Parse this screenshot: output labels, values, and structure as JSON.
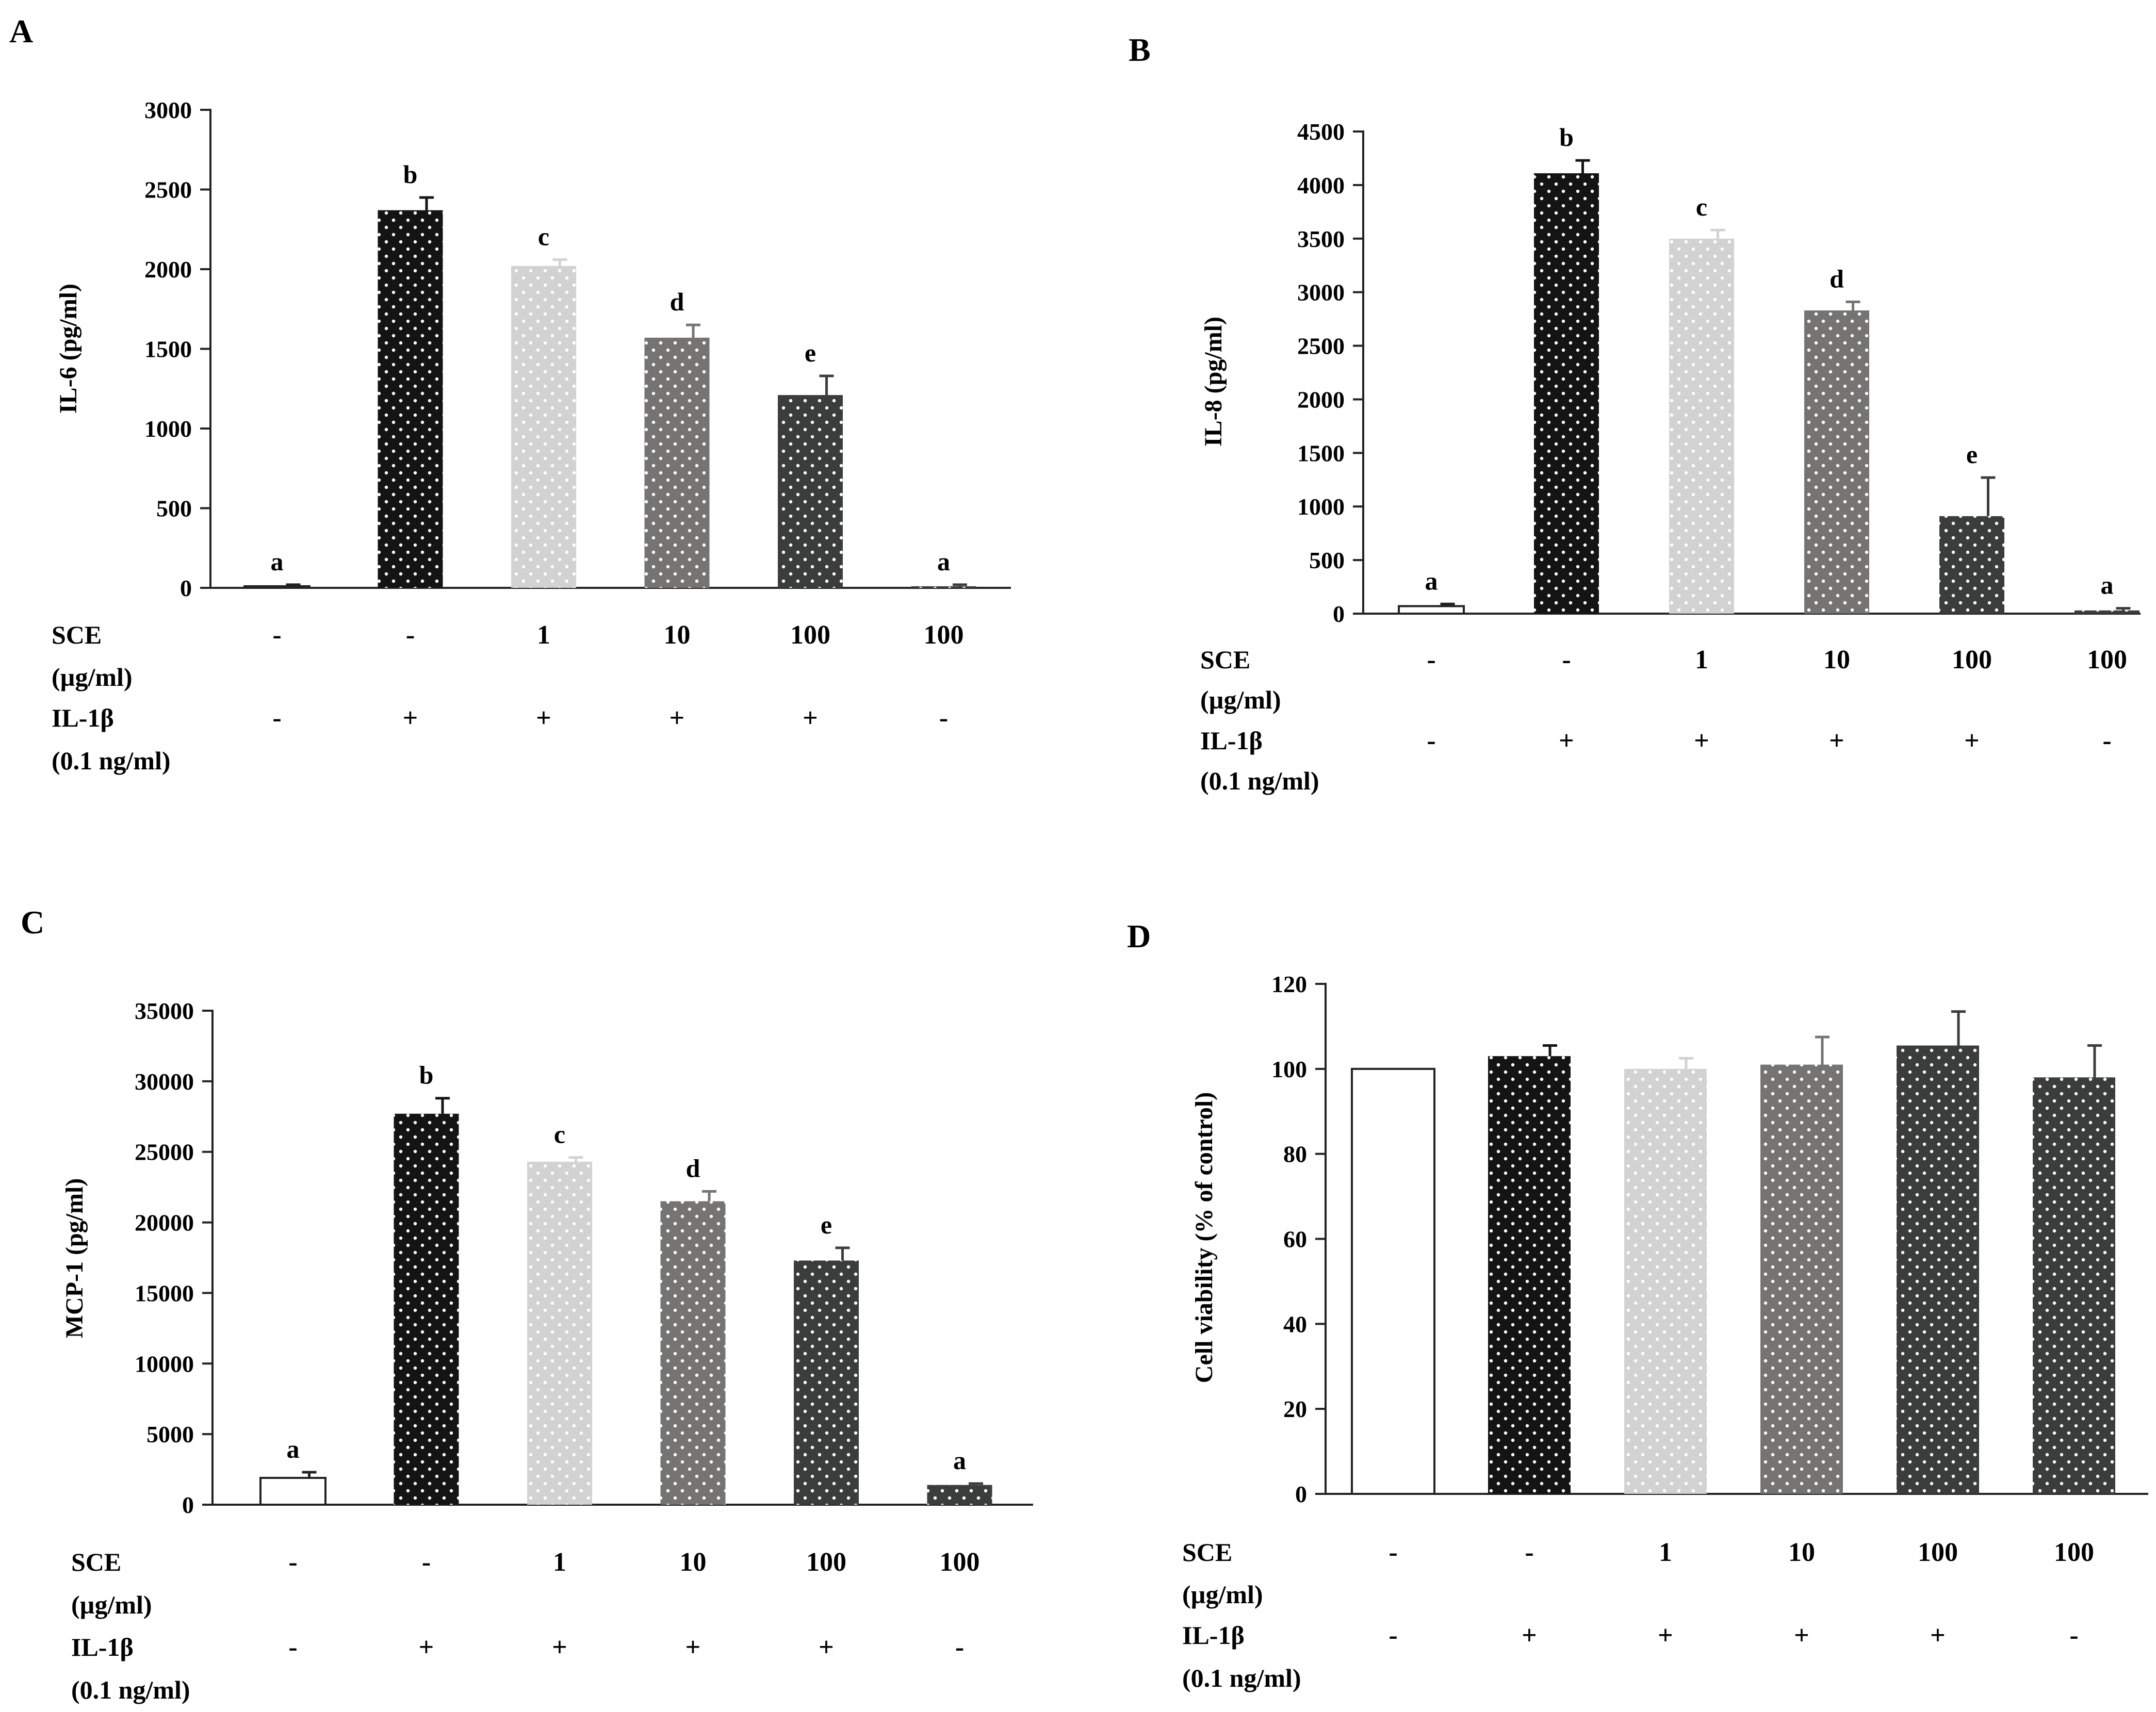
{
  "figure": {
    "row_labels": {
      "sce_line1": "SCE",
      "sce_line2": "(µg/ml)",
      "il_line1": "IL-1β",
      "il_line2": "(0.1 ng/ml)"
    },
    "bar_colors": [
      "#ffffff",
      "#141414",
      "#d2d2d2",
      "#767373",
      "#3b3d3d",
      "#3b3d3d"
    ],
    "dot_color": "#ffffff"
  },
  "chart_data": [
    {
      "panel": "A",
      "type": "bar",
      "ylabel": "IL-6 (pg/ml)",
      "ylim": [
        0,
        3000
      ],
      "yticks": [
        0,
        500,
        1000,
        1500,
        2000,
        2500,
        3000
      ],
      "tick_labels": [
        "0",
        "500",
        "1000",
        "1500",
        "2000",
        "2500",
        "3000"
      ],
      "values": [
        10,
        2370,
        2020,
        1570,
        1210,
        10
      ],
      "errors": [
        10,
        80,
        40,
        80,
        120,
        10
      ],
      "sig_letters": [
        "a",
        "b",
        "c",
        "d",
        "e",
        "a"
      ],
      "sce": [
        "-",
        "-",
        "1",
        "10",
        "100",
        "100"
      ],
      "il1b": [
        "-",
        "+",
        "+",
        "+",
        "+",
        "-"
      ]
    },
    {
      "panel": "B",
      "type": "bar",
      "ylabel": "IL-8 (pg/ml)",
      "ylim": [
        0,
        4500
      ],
      "yticks": [
        0,
        500,
        1000,
        1500,
        2000,
        2500,
        3000,
        3500,
        4000,
        4500
      ],
      "tick_labels": [
        "0",
        "500",
        "1000",
        "1500",
        "2000",
        "2500",
        "3000",
        "3500",
        "4000",
        "4500"
      ],
      "values": [
        70,
        4110,
        3500,
        2830,
        910,
        30
      ],
      "errors": [
        20,
        120,
        80,
        80,
        360,
        20
      ],
      "sig_letters": [
        "a",
        "b",
        "c",
        "d",
        "e",
        "a"
      ],
      "sce": [
        "-",
        "-",
        "1",
        "10",
        "100",
        "100"
      ],
      "il1b": [
        "-",
        "+",
        "+",
        "+",
        "+",
        "-"
      ]
    },
    {
      "panel": "C",
      "type": "bar",
      "ylabel": "MCP-1 (pg/ml)",
      "ylim": [
        0,
        35000
      ],
      "yticks": [
        0,
        5000,
        10000,
        15000,
        20000,
        25000,
        30000,
        35000
      ],
      "tick_labels": [
        "0",
        "5000",
        "10000",
        "15000",
        "20000",
        "25000",
        "30000",
        "35000"
      ],
      "values": [
        1900,
        27700,
        24300,
        21500,
        17300,
        1400
      ],
      "errors": [
        400,
        1100,
        300,
        700,
        900,
        100
      ],
      "sig_letters": [
        "a",
        "b",
        "c",
        "d",
        "e",
        "a"
      ],
      "sce": [
        "-",
        "-",
        "1",
        "10",
        "100",
        "100"
      ],
      "il1b": [
        "-",
        "+",
        "+",
        "+",
        "+",
        "-"
      ]
    },
    {
      "panel": "D",
      "type": "bar",
      "ylabel": "Cell viability (% of control)",
      "ylim": [
        0,
        120
      ],
      "yticks": [
        0,
        20,
        40,
        60,
        80,
        100,
        120
      ],
      "tick_labels": [
        "0",
        "20",
        "40",
        "60",
        "80",
        "100",
        "120"
      ],
      "values": [
        100,
        103,
        100,
        101,
        105.5,
        98
      ],
      "errors": [
        0,
        2.5,
        2.5,
        6.5,
        8,
        7.5
      ],
      "sig_letters": [],
      "sce": [
        "-",
        "-",
        "1",
        "10",
        "100",
        "100"
      ],
      "il1b": [
        "-",
        "+",
        "+",
        "+",
        "+",
        "-"
      ]
    }
  ]
}
